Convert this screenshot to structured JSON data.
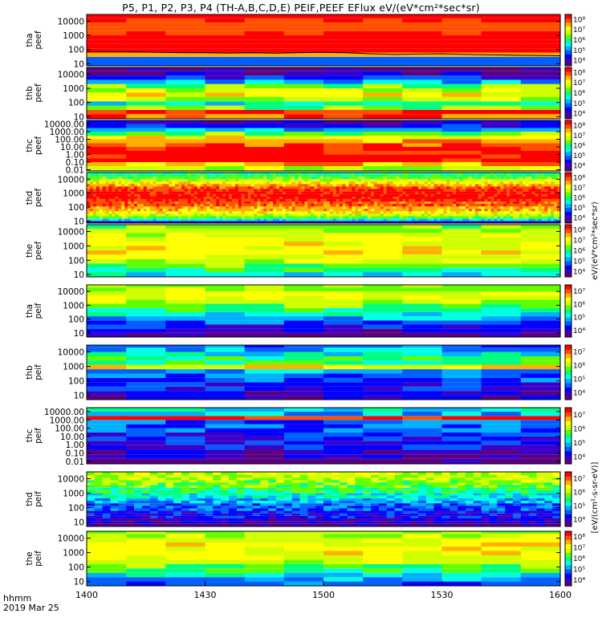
{
  "title": "P5, P1, P2, P3, P4 (TH-A,B,C,D,E) PEIF,PEEF EFlux eV/(eV*cm²*sec*sr)",
  "footer": {
    "time_label": "hhmm",
    "date_label": "2019 Mar 25"
  },
  "colors": {
    "colormap": [
      "#5a0080",
      "#3a00c8",
      "#0000ff",
      "#0060ff",
      "#00b0ff",
      "#00ffe0",
      "#00ff80",
      "#60ff00",
      "#d0ff00",
      "#ffff00",
      "#ffb000",
      "#ff5000",
      "#ff0000"
    ],
    "axis": "#000000",
    "bin_separator": "#000000",
    "fill_band": "#ffffff"
  },
  "colorbar_label_top": "eV/(eV*cm²*sec*sr)",
  "colorbar_label_bottom": "[eV/(cm²-s-sr-eV)]",
  "chart_data": {
    "type": "heatmap",
    "x_axis": {
      "label": "hhmm",
      "range": [
        "1400",
        "1600"
      ],
      "ticks": [
        "1400",
        "1430",
        "1500",
        "1530",
        "1600"
      ]
    },
    "panels": [
      {
        "ylabel": [
          "tha",
          "peef"
        ],
        "yscale": "log",
        "ylim": [
          7,
          30000
        ],
        "yticks": [
          "10",
          "100",
          "1000",
          "10000"
        ],
        "cbar_ticks": [
          "10⁴",
          "10⁵",
          "10⁶",
          "10⁷",
          "10⁸"
        ],
        "energy_bins": [
          7,
          30,
          60,
          120,
          250,
          500,
          1000,
          2000,
          4000,
          8000,
          16000,
          30000
        ],
        "flux_profile": [
          3,
          10,
          12,
          12,
          12,
          12,
          11.5,
          11,
          11,
          11.5,
          12
        ],
        "time_modulation": 0.5,
        "overlay_line": [
          70,
          70,
          68,
          62,
          60,
          58,
          56,
          58,
          55,
          60,
          62,
          58,
          50,
          45,
          48,
          50,
          45,
          42,
          40,
          38,
          36
        ]
      },
      {
        "ylabel": [
          "thb",
          "peef"
        ],
        "yscale": "log",
        "ylim": [
          7,
          30000
        ],
        "yticks": [
          "10",
          "100",
          "1000",
          "10000"
        ],
        "cbar_ticks": [
          "10⁴",
          "10⁵",
          "10⁶",
          "10⁷",
          "10⁸"
        ],
        "energy_bins": [
          7,
          15,
          30,
          60,
          120,
          250,
          500,
          1000,
          2000,
          4000,
          8000,
          16000,
          30000
        ],
        "flux_profile": [
          11,
          12,
          7,
          5,
          8,
          9,
          8,
          7,
          4,
          2,
          1,
          0
        ],
        "time_modulation": 1.5
      },
      {
        "ylabel": [
          "thc",
          "peef"
        ],
        "yscale": "log",
        "ylim": [
          0.007,
          30000
        ],
        "yticks": [
          "0.01",
          "0.10",
          "1.00",
          "10.00",
          "100.00",
          "1000.00",
          "10000.00"
        ],
        "cbar_ticks": [
          "10⁴",
          "10⁵",
          "10⁶",
          "10⁷",
          "10⁸"
        ],
        "energy_bins": [
          0.007,
          0.03,
          0.1,
          0.3,
          1,
          3,
          10,
          30,
          100,
          300,
          1000,
          3000,
          10000,
          30000
        ],
        "flux_profile": [
          8,
          10,
          12,
          12,
          12,
          12,
          11,
          10,
          9,
          7,
          4,
          2,
          1
        ],
        "time_modulation": 1.0
      },
      {
        "ylabel": [
          "thd",
          "peef"
        ],
        "yscale": "log",
        "ylim": [
          7,
          30000
        ],
        "yticks": [
          "10",
          "100",
          "1000",
          "10000"
        ],
        "cbar_ticks": [
          "10⁴",
          "10⁵",
          "10⁶",
          "10⁷",
          "10⁸"
        ],
        "energy_bins": [
          7,
          10,
          15,
          22,
          33,
          50,
          75,
          110,
          170,
          250,
          380,
          560,
          850,
          1300,
          2000,
          3000,
          4500,
          6800,
          10000,
          15000,
          22000,
          30000
        ],
        "flux_profile": [
          1,
          5,
          7,
          8,
          9,
          10,
          10,
          11,
          11,
          11.5,
          12,
          12,
          12,
          11.5,
          11,
          10,
          9,
          8,
          7,
          6,
          6
        ],
        "time_modulation": 0.8,
        "time_cols": 150,
        "overlay_line": [
          7,
          7,
          7,
          7,
          7,
          7,
          7,
          7,
          7,
          7,
          7
        ]
      },
      {
        "ylabel": [
          "the",
          "peef"
        ],
        "yscale": "log",
        "ylim": [
          7,
          30000
        ],
        "yticks": [
          "10",
          "100",
          "1000",
          "10000"
        ],
        "cbar_ticks": [
          "10⁴",
          "10⁵",
          "10⁶",
          "10⁷",
          "10⁸"
        ],
        "energy_bins": [
          7,
          15,
          30,
          60,
          120,
          250,
          500,
          1000,
          2000,
          4000,
          8000,
          16000,
          30000
        ],
        "flux_profile": [
          5,
          6,
          7,
          8,
          8.5,
          9,
          9,
          9,
          8.5,
          8,
          7.5,
          7
        ],
        "time_modulation": 1.0
      },
      {
        "ylabel": [
          "tha",
          "peif"
        ],
        "yscale": "log",
        "ylim": [
          5,
          30000
        ],
        "yticks": [
          "10",
          "100",
          "1000",
          "10000"
        ],
        "cbar_ticks": [
          "10⁴",
          "10⁵",
          "10⁶",
          "10⁷"
        ],
        "energy_bins": [
          5,
          10,
          20,
          40,
          80,
          160,
          320,
          640,
          1300,
          2600,
          5000,
          10000,
          20000,
          30000
        ],
        "flux_profile": [
          0,
          1,
          2,
          3,
          4,
          5,
          6,
          7,
          8,
          8.5,
          8.5,
          8,
          7.5
        ],
        "time_modulation": 1.0
      },
      {
        "ylabel": [
          "thb",
          "peif"
        ],
        "yscale": "log",
        "ylim": [
          5,
          30000
        ],
        "yticks": [
          "10",
          "100",
          "1000",
          "10000"
        ],
        "cbar_ticks": [
          "10⁴",
          "10⁵",
          "10⁶",
          "10⁷"
        ],
        "energy_bins": [
          5,
          10,
          20,
          40,
          80,
          160,
          320,
          640,
          1300,
          2600,
          5000,
          10000,
          20000,
          30000
        ],
        "flux_profile": [
          1,
          1,
          2,
          2,
          3,
          3,
          4,
          9,
          6,
          6,
          5,
          4,
          3
        ],
        "time_modulation": 1.5
      },
      {
        "ylabel": [
          "thc",
          "peif"
        ],
        "yscale": "log",
        "ylim": [
          0.005,
          30000
        ],
        "yticks": [
          "0.01",
          "0.10",
          "1.00",
          "10.00",
          "100.00",
          "1000.00",
          "10000.00"
        ],
        "cbar_ticks": [
          "10⁴",
          "10⁵",
          "10⁶",
          "10⁷"
        ],
        "energy_bins": [
          0.005,
          0.02,
          0.07,
          0.25,
          1,
          3,
          10,
          30,
          100,
          300,
          1000,
          3000,
          10000,
          30000
        ],
        "flux_profile": [
          0,
          1,
          1,
          2,
          2,
          2,
          2,
          3,
          3,
          3,
          12,
          4,
          5
        ],
        "time_modulation": 1.5
      },
      {
        "ylabel": [
          "thd",
          "peif"
        ],
        "yscale": "log",
        "ylim": [
          5,
          30000
        ],
        "yticks": [
          "10",
          "100",
          "1000",
          "10000"
        ],
        "cbar_ticks": [
          "10⁴",
          "10⁵",
          "10⁶",
          "10⁷"
        ],
        "energy_bins": [
          5,
          8,
          12,
          18,
          27,
          40,
          60,
          90,
          135,
          200,
          300,
          450,
          700,
          1000,
          1600,
          2400,
          3600,
          5400,
          8000,
          12000,
          18000,
          30000
        ],
        "flux_profile": [
          0,
          1,
          1,
          2,
          2,
          2,
          3,
          3,
          3,
          4,
          4,
          5,
          5,
          6,
          6,
          7,
          7,
          7.5,
          8,
          8,
          8
        ],
        "time_modulation": 1.2,
        "time_cols": 60
      },
      {
        "ylabel": [
          "the",
          "peif"
        ],
        "yscale": "log",
        "ylim": [
          5,
          30000
        ],
        "yticks": [
          "10",
          "100",
          "1000",
          "10000"
        ],
        "cbar_ticks": [
          "10⁴",
          "10⁵",
          "10⁶",
          "10⁷",
          "10⁸"
        ],
        "energy_bins": [
          5,
          10,
          20,
          40,
          80,
          160,
          320,
          640,
          1300,
          2600,
          5000,
          10000,
          20000,
          30000
        ],
        "flux_profile": [
          3,
          4,
          5,
          6,
          7,
          8,
          8.5,
          9,
          9,
          9,
          8.5,
          8,
          7.5
        ],
        "time_modulation": 1.0
      }
    ]
  }
}
